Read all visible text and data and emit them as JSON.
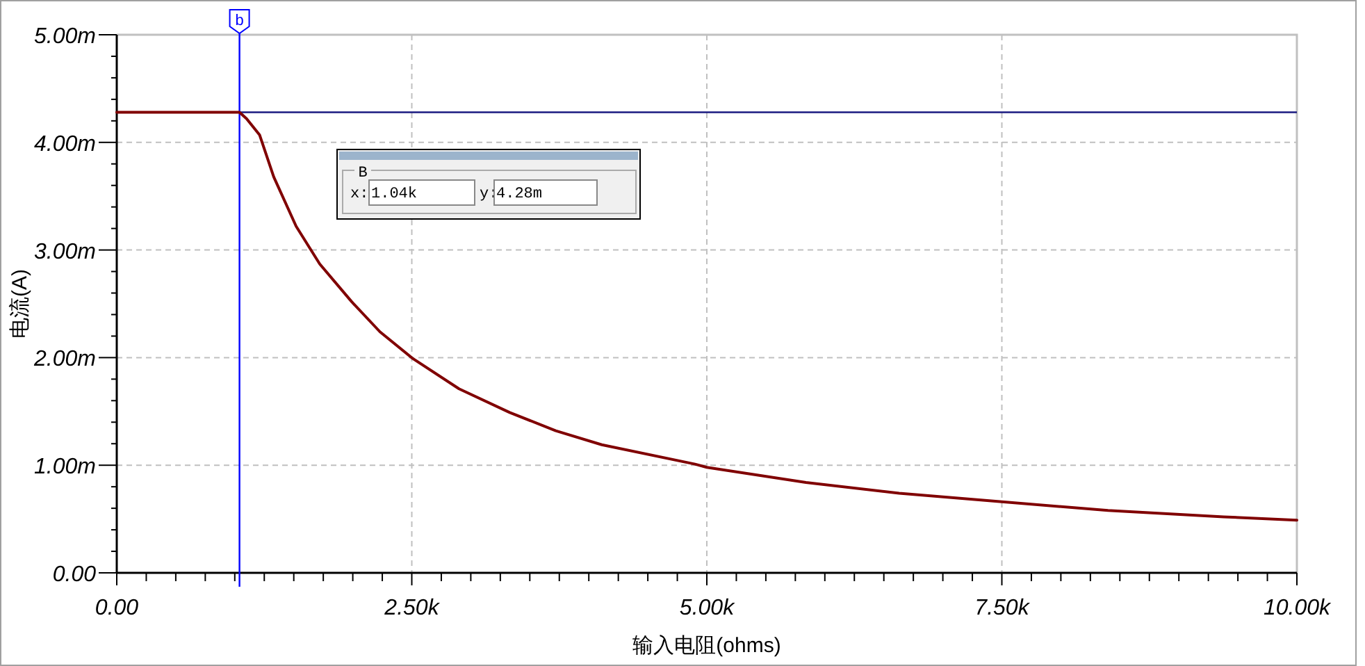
{
  "chart_data": {
    "type": "line",
    "xlabel": "输入电阻(ohms)",
    "ylabel": "电流(A)",
    "x": [
      0,
      0.5,
      1.04,
      1.1,
      1.21,
      1.33,
      1.52,
      1.72,
      1.99,
      2.23,
      2.51,
      2.9,
      3.33,
      3.72,
      4.11,
      4.9,
      5.0,
      5.84,
      6.63,
      7.5,
      8.4,
      9.38,
      10.0
    ],
    "series": [
      {
        "color": "#800000",
        "values": [
          4.28,
          4.28,
          4.28,
          4.22,
          4.07,
          3.68,
          3.22,
          2.87,
          2.52,
          2.24,
          1.99,
          1.71,
          1.49,
          1.32,
          1.19,
          1.01,
          0.98,
          0.84,
          0.74,
          0.66,
          0.58,
          0.52,
          0.49
        ]
      }
    ],
    "xlim": [
      0,
      10
    ],
    "ylim": [
      0,
      5
    ],
    "xticks": [
      {
        "value": 0,
        "label": "0.00"
      },
      {
        "value": 0.25,
        "label": null
      },
      {
        "value": 0.5,
        "label": null
      },
      {
        "value": 0.75,
        "label": null
      },
      {
        "value": 1,
        "label": null
      },
      {
        "value": 1.25,
        "label": null
      },
      {
        "value": 1.5,
        "label": null
      },
      {
        "value": 1.75,
        "label": null
      },
      {
        "value": 2,
        "label": null
      },
      {
        "value": 2.25,
        "label": null
      },
      {
        "value": 2.5,
        "label": "2.50k"
      },
      {
        "value": 2.75,
        "label": null
      },
      {
        "value": 3,
        "label": null
      },
      {
        "value": 3.25,
        "label": null
      },
      {
        "value": 3.5,
        "label": null
      },
      {
        "value": 3.75,
        "label": null
      },
      {
        "value": 4,
        "label": null
      },
      {
        "value": 4.25,
        "label": null
      },
      {
        "value": 4.5,
        "label": null
      },
      {
        "value": 4.75,
        "label": null
      },
      {
        "value": 5,
        "label": "5.00k"
      },
      {
        "value": 5.25,
        "label": null
      },
      {
        "value": 5.5,
        "label": null
      },
      {
        "value": 5.75,
        "label": null
      },
      {
        "value": 6,
        "label": null
      },
      {
        "value": 6.25,
        "label": null
      },
      {
        "value": 6.5,
        "label": null
      },
      {
        "value": 6.75,
        "label": null
      },
      {
        "value": 7,
        "label": null
      },
      {
        "value": 7.25,
        "label": null
      },
      {
        "value": 7.5,
        "label": "7.50k"
      },
      {
        "value": 7.75,
        "label": null
      },
      {
        "value": 8,
        "label": null
      },
      {
        "value": 8.25,
        "label": null
      },
      {
        "value": 8.5,
        "label": null
      },
      {
        "value": 8.75,
        "label": null
      },
      {
        "value": 9,
        "label": null
      },
      {
        "value": 9.25,
        "label": null
      },
      {
        "value": 9.5,
        "label": null
      },
      {
        "value": 9.75,
        "label": null
      },
      {
        "value": 10,
        "label": "10.00k"
      }
    ],
    "yticks": [
      {
        "value": 0,
        "label": "0.00"
      },
      {
        "value": 0.2,
        "label": null
      },
      {
        "value": 0.4,
        "label": null
      },
      {
        "value": 0.6,
        "label": null
      },
      {
        "value": 0.8,
        "label": null
      },
      {
        "value": 1,
        "label": "1.00m"
      },
      {
        "value": 1.2,
        "label": null
      },
      {
        "value": 1.4,
        "label": null
      },
      {
        "value": 1.6,
        "label": null
      },
      {
        "value": 1.8,
        "label": null
      },
      {
        "value": 2,
        "label": "2.00m"
      },
      {
        "value": 2.2,
        "label": null
      },
      {
        "value": 2.4,
        "label": null
      },
      {
        "value": 2.6,
        "label": null
      },
      {
        "value": 2.8,
        "label": null
      },
      {
        "value": 3,
        "label": "3.00m"
      },
      {
        "value": 3.2,
        "label": null
      },
      {
        "value": 3.4,
        "label": null
      },
      {
        "value": 3.6,
        "label": null
      },
      {
        "value": 3.8,
        "label": null
      },
      {
        "value": 4,
        "label": "4.00m"
      },
      {
        "value": 4.2,
        "label": null
      },
      {
        "value": 4.4,
        "label": null
      },
      {
        "value": 4.6,
        "label": null
      },
      {
        "value": 4.8,
        "label": null
      },
      {
        "value": 5,
        "label": "5.00m"
      }
    ],
    "grid": true,
    "ref_lines": [
      {
        "axis": "x",
        "value": 1.04,
        "label": "b",
        "color": "#0000ff"
      },
      {
        "axis": "y",
        "value": 4.28,
        "label": null,
        "color": "#1a1a80"
      }
    ],
    "annotations": [
      "B",
      "x:",
      "1.04k",
      "y:",
      "4.28m"
    ]
  }
}
